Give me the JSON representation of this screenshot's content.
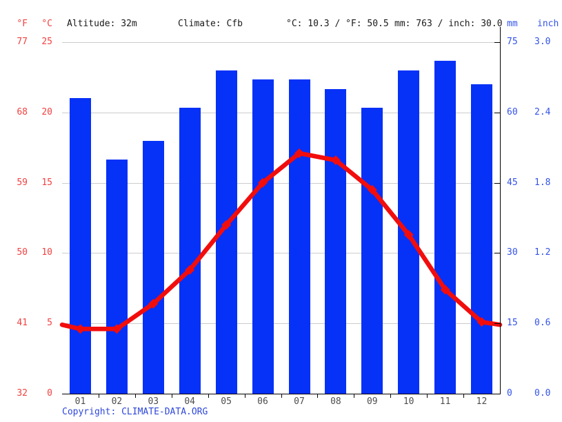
{
  "header": {
    "f_unit": "°F",
    "c_unit": "°C",
    "altitude": "Altitude: 32m",
    "climate": "Climate: Cfb",
    "temperature_summary": "°C: 10.3 / °F: 50.5",
    "precipitation_summary": "mm: 763 / inch: 30.0",
    "mm_unit": "mm",
    "inch_unit": "inch"
  },
  "footer": {
    "copyright_label": "Copyright:",
    "copyright_link": "CLIMATE-DATA.ORG"
  },
  "colors": {
    "bar_blue": "#0631f7",
    "line_red": "#f20d0d",
    "axis_red_text": "#f24141",
    "axis_blue_text": "#3353e8",
    "copyright_blue": "#2d47d9",
    "grid_gray": "#cccccc",
    "axis_black": "#000000",
    "month_gray": "#4d4d4d"
  },
  "chart_data": {
    "type": "bar",
    "categories": [
      "01",
      "02",
      "03",
      "04",
      "05",
      "06",
      "07",
      "08",
      "09",
      "10",
      "11",
      "12"
    ],
    "series": [
      {
        "name": "precipitation_mm",
        "type": "bar",
        "values": [
          63,
          50,
          54,
          61,
          69,
          67,
          67,
          65,
          61,
          69,
          71,
          66
        ]
      },
      {
        "name": "temperature_c",
        "type": "line",
        "values": [
          4.6,
          4.6,
          6.4,
          8.8,
          12.0,
          15.0,
          17.1,
          16.6,
          14.5,
          11.3,
          7.4,
          5.1
        ]
      }
    ],
    "line_edge_values_c": {
      "left": 4.9,
      "right": 4.9
    },
    "axis_ticks": {
      "fahrenheit": [
        "77",
        "68",
        "59",
        "50",
        "41",
        "32"
      ],
      "celsius": [
        "25",
        "20",
        "15",
        "10",
        "5",
        "0"
      ],
      "mm": [
        "75",
        "60",
        "45",
        "30",
        "15",
        "0"
      ],
      "inch": [
        "3.0",
        "2.4",
        "1.8",
        "1.2",
        "0.6",
        "0.0"
      ]
    },
    "ylim_c": [
      0,
      25
    ],
    "ylim_mm": [
      0,
      75
    ],
    "grid": true,
    "legend_position": "none",
    "annual_mean_c": 10.3,
    "annual_precip_mm": 763
  }
}
